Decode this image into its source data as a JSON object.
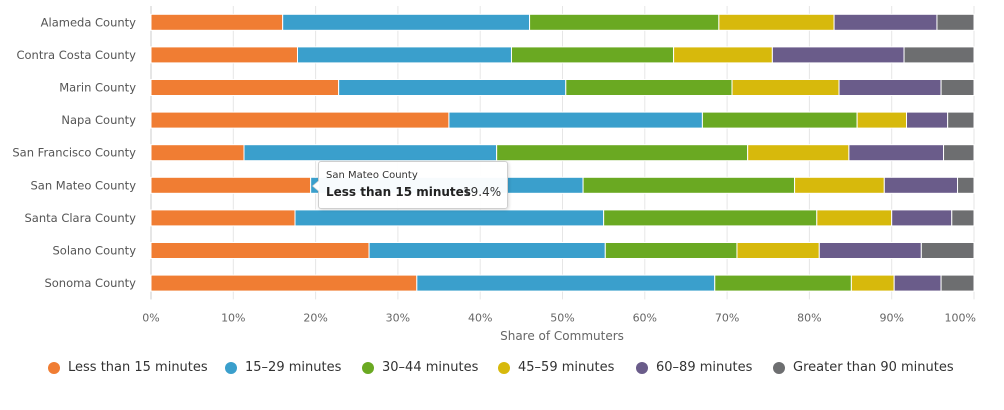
{
  "chart_data": {
    "type": "bar",
    "orientation": "horizontal",
    "stacked": true,
    "stacking": "percent",
    "categories": [
      "Alameda County",
      "Contra Costa County",
      "Marin County",
      "Napa County",
      "San Francisco County",
      "San Mateo County",
      "Santa Clara County",
      "Solano County",
      "Sonoma County"
    ],
    "series": [
      {
        "name": "Less than 15 minutes",
        "color": "#f07d33",
        "values": [
          16.0,
          17.8,
          22.8,
          36.2,
          11.3,
          19.4,
          17.5,
          26.5,
          32.3
        ]
      },
      {
        "name": "15–29 minutes",
        "color": "#3a9fcc",
        "values": [
          30.0,
          26.0,
          27.6,
          30.8,
          30.7,
          33.1,
          37.5,
          28.7,
          36.2
        ]
      },
      {
        "name": "30–44 minutes",
        "color": "#6aa922",
        "values": [
          23.0,
          19.7,
          20.2,
          18.8,
          30.5,
          25.7,
          25.9,
          16.0,
          16.6
        ]
      },
      {
        "name": "45–59 minutes",
        "color": "#d7b90c",
        "values": [
          14.0,
          12.0,
          13.0,
          6.0,
          12.3,
          10.9,
          9.1,
          10.0,
          5.2
        ]
      },
      {
        "name": "60–89 minutes",
        "color": "#6a5c8a",
        "values": [
          12.5,
          16.0,
          12.4,
          5.0,
          11.5,
          8.9,
          7.3,
          12.4,
          5.7
        ]
      },
      {
        "name": "Greater than 90 minutes",
        "color": "#6d6e70",
        "values": [
          4.5,
          8.5,
          4.0,
          3.2,
          3.7,
          2.0,
          2.7,
          6.4,
          4.0
        ]
      }
    ],
    "xlabel": "Share of Commuters",
    "xlim": [
      0,
      100
    ],
    "xticks": [
      "0%",
      "10%",
      "20%",
      "30%",
      "40%",
      "50%",
      "60%",
      "70%",
      "80%",
      "90%",
      "100%"
    ],
    "grid": true,
    "legend_position": "bottom"
  },
  "tooltip": {
    "title": "San Mateo County",
    "series": "Less than 15 minutes",
    "value": "19.4%"
  }
}
